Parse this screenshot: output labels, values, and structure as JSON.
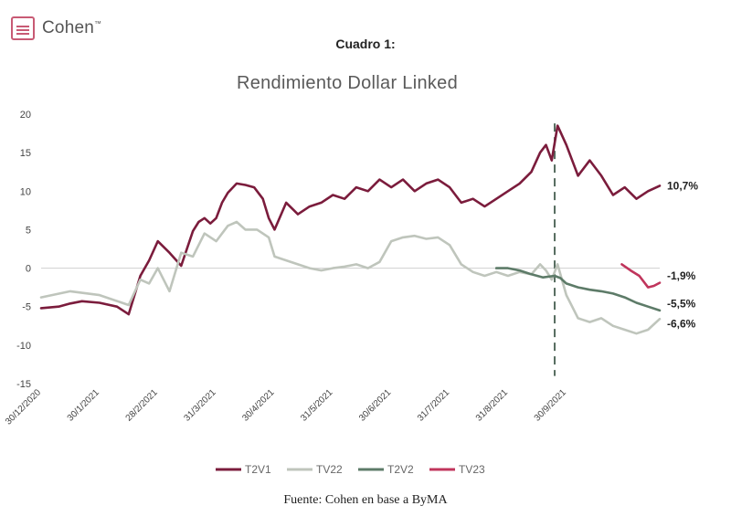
{
  "header": {
    "logo_text": "Cohen",
    "cuadro": "Cuadro 1:",
    "title": "Rendimiento Dollar Linked"
  },
  "footer": {
    "source": "Fuente: Cohen en base a ByMA"
  },
  "chart_data": {
    "type": "line",
    "title": "Rendimiento Dollar Linked",
    "ylim": [
      -15,
      20
    ],
    "y_ticks": [
      20,
      15,
      10,
      5,
      0,
      -5,
      -10,
      -15
    ],
    "x_ticks": [
      "30/12/2020",
      "30/1/2021",
      "28/2/2021",
      "31/3/2021",
      "30/4/2021",
      "31/5/2021",
      "30/6/2021",
      "31/7/2021",
      "31/8/2021",
      "30/9/2021"
    ],
    "grid": false,
    "legend": "bottom",
    "vline_x": 8.8,
    "end_labels": [
      "10,7%",
      "-1,9%",
      "-5,5%",
      "-6,6%"
    ],
    "series": [
      {
        "name": "T2V1",
        "color": "#7b1c3c",
        "x": [
          0,
          0.3,
          0.5,
          0.7,
          1.0,
          1.3,
          1.5,
          1.7,
          1.85,
          2.0,
          2.2,
          2.4,
          2.6,
          2.7,
          2.8,
          2.9,
          3.0,
          3.1,
          3.2,
          3.35,
          3.5,
          3.65,
          3.8,
          3.9,
          4.0,
          4.2,
          4.4,
          4.6,
          4.8,
          5.0,
          5.2,
          5.4,
          5.6,
          5.8,
          6.0,
          6.2,
          6.4,
          6.6,
          6.8,
          7.0,
          7.2,
          7.4,
          7.6,
          7.8,
          8.0,
          8.2,
          8.4,
          8.55,
          8.65,
          8.75,
          8.85,
          9.0,
          9.2,
          9.4,
          9.6,
          9.8,
          10.0,
          10.2,
          10.4,
          10.6
        ],
        "y": [
          -5.2,
          -5.0,
          -4.6,
          -4.3,
          -4.5,
          -5.0,
          -6.0,
          -1.0,
          1.0,
          3.5,
          2.0,
          0.3,
          4.8,
          6.0,
          6.5,
          5.8,
          6.5,
          8.5,
          9.8,
          11.0,
          10.8,
          10.5,
          9.0,
          6.5,
          5.0,
          8.5,
          7.0,
          8.0,
          8.5,
          9.5,
          9.0,
          10.5,
          10.0,
          11.5,
          10.5,
          11.5,
          10.0,
          11.0,
          11.5,
          10.5,
          8.5,
          9.0,
          8.0,
          9.0,
          10.0,
          11.0,
          12.5,
          15.0,
          16.0,
          14.0,
          18.5,
          16.0,
          12.0,
          14.0,
          12.0,
          9.5,
          10.5,
          9.0,
          10.0,
          10.7
        ]
      },
      {
        "name": "TV22",
        "color": "#bfc5bc",
        "x": [
          0,
          0.5,
          1.0,
          1.5,
          1.7,
          1.85,
          2.0,
          2.2,
          2.4,
          2.6,
          2.8,
          3.0,
          3.2,
          3.35,
          3.5,
          3.7,
          3.9,
          4.0,
          4.2,
          4.4,
          4.6,
          4.8,
          5.0,
          5.2,
          5.4,
          5.6,
          5.8,
          6.0,
          6.2,
          6.4,
          6.6,
          6.8,
          7.0,
          7.2,
          7.4,
          7.6,
          7.8,
          8.0,
          8.2,
          8.4,
          8.55,
          8.65,
          8.75,
          8.85,
          9.0,
          9.1,
          9.2,
          9.4,
          9.6,
          9.8,
          10.0,
          10.2,
          10.4,
          10.6
        ],
        "y": [
          -3.8,
          -3.0,
          -3.5,
          -4.8,
          -1.5,
          -2.0,
          0.0,
          -3.0,
          2.0,
          1.5,
          4.5,
          3.5,
          5.5,
          6.0,
          5.0,
          5.0,
          4.0,
          1.5,
          1.0,
          0.5,
          0.0,
          -0.3,
          0.0,
          0.2,
          0.5,
          0.0,
          0.8,
          3.5,
          4.0,
          4.2,
          3.8,
          4.0,
          3.0,
          0.5,
          -0.5,
          -1.0,
          -0.5,
          -1.0,
          -0.5,
          -0.8,
          0.5,
          -0.3,
          -1.5,
          0.5,
          -3.5,
          -5.0,
          -6.5,
          -7.0,
          -6.5,
          -7.5,
          -8.0,
          -8.5,
          -8.0,
          -6.6
        ]
      },
      {
        "name": "T2V2",
        "color": "#5d7b68",
        "x": [
          7.8,
          8.0,
          8.2,
          8.4,
          8.6,
          8.8,
          8.9,
          9.0,
          9.2,
          9.4,
          9.6,
          9.8,
          10.0,
          10.2,
          10.4,
          10.6
        ],
        "y": [
          0.0,
          0.0,
          -0.3,
          -0.8,
          -1.2,
          -1.0,
          -1.3,
          -2.0,
          -2.5,
          -2.8,
          -3.0,
          -3.3,
          -3.8,
          -4.5,
          -5.0,
          -5.5
        ]
      },
      {
        "name": "TV23",
        "color": "#c0355c",
        "x": [
          9.95,
          10.1,
          10.25,
          10.4,
          10.5,
          10.6
        ],
        "y": [
          0.5,
          -0.3,
          -1.0,
          -2.5,
          -2.3,
          -1.9
        ]
      }
    ]
  }
}
